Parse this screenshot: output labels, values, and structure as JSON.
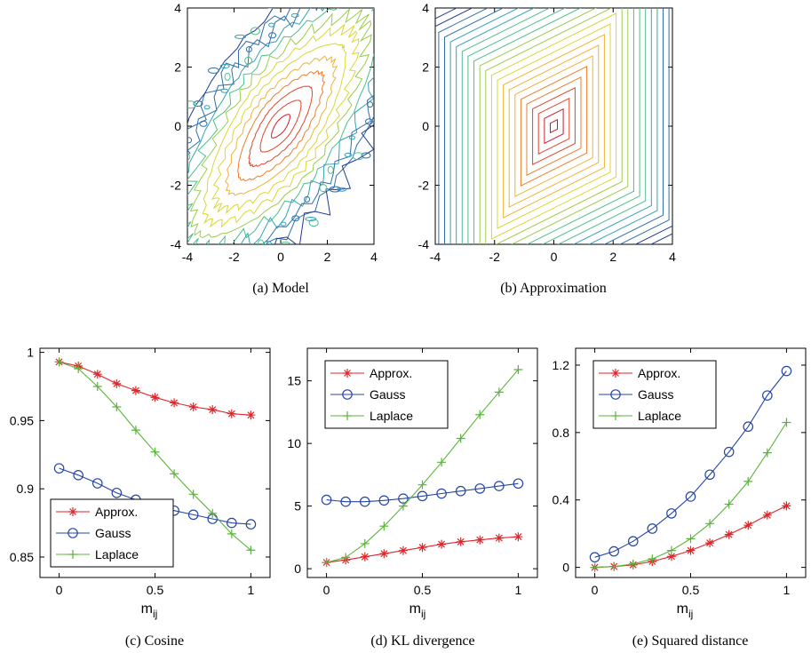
{
  "chart_data": [
    {
      "type": "contour",
      "caption": "(a) Model",
      "xlim": [
        -4,
        4
      ],
      "ylim": [
        -4,
        4
      ],
      "xticks": [
        -4,
        -2,
        0,
        2,
        4
      ],
      "yticks": [
        -4,
        -2,
        0,
        2,
        4
      ],
      "colors": [
        "#1f3a93",
        "#2f6fa8",
        "#33a3b5",
        "#4cbf8a",
        "#9acd4a",
        "#d8d832",
        "#f2b233",
        "#ef7d2c",
        "#e0452a",
        "#c81e2a"
      ]
    },
    {
      "type": "contour",
      "caption": "(b) Approximation",
      "xlim": [
        -4,
        4
      ],
      "ylim": [
        -4,
        4
      ],
      "xticks": [
        -4,
        -2,
        0,
        2,
        4
      ],
      "yticks": [
        -4,
        -2,
        0,
        2,
        4
      ],
      "colors": [
        "#1f3a93",
        "#2f6fa8",
        "#33a3b5",
        "#4cbf8a",
        "#9acd4a",
        "#d8d832",
        "#f2b233",
        "#ef7d2c",
        "#e0452a",
        "#c81e2a"
      ]
    },
    {
      "type": "line",
      "caption": "(c) Cosine",
      "xlabel": "m",
      "xlabel_sub": "ij",
      "xlim": [
        -0.1,
        1.1
      ],
      "ylim": [
        0.835,
        1.003
      ],
      "xticks": [
        0,
        0.5,
        1
      ],
      "xticklabels": [
        "0",
        "0.5",
        "1"
      ],
      "yticks": [
        0.85,
        0.9,
        0.95,
        1
      ],
      "yticklabels": [
        "0.85",
        "0.9",
        "0.95",
        "1"
      ],
      "legend": "bottom-left",
      "x": [
        0,
        0.1,
        0.2,
        0.3,
        0.4,
        0.5,
        0.6,
        0.7,
        0.8,
        0.9,
        1.0
      ],
      "series": [
        {
          "name": "Approx.",
          "color": "#e0262a",
          "marker": "star",
          "values": [
            0.993,
            0.99,
            0.984,
            0.977,
            0.972,
            0.967,
            0.963,
            0.96,
            0.958,
            0.955,
            0.954
          ]
        },
        {
          "name": "Gauss",
          "color": "#2646a6",
          "marker": "circle",
          "values": [
            0.915,
            0.91,
            0.904,
            0.897,
            0.892,
            0.888,
            0.884,
            0.881,
            0.878,
            0.875,
            0.874
          ]
        },
        {
          "name": "Laplace",
          "color": "#5ab43a",
          "marker": "plus",
          "values": [
            0.993,
            0.988,
            0.975,
            0.96,
            0.943,
            0.927,
            0.911,
            0.896,
            0.882,
            0.867,
            0.855
          ]
        }
      ]
    },
    {
      "type": "line",
      "caption": "(d) KL divergence",
      "xlabel": "m",
      "xlabel_sub": "ij",
      "xlim": [
        -0.1,
        1.1
      ],
      "ylim": [
        -0.7,
        17.6
      ],
      "xticks": [
        0,
        0.5,
        1
      ],
      "xticklabels": [
        "0",
        "0.5",
        "1"
      ],
      "yticks": [
        0,
        5,
        10,
        15
      ],
      "yticklabels": [
        "0",
        "5",
        "10",
        "15"
      ],
      "legend": "top-left",
      "x": [
        0,
        0.1,
        0.2,
        0.3,
        0.4,
        0.5,
        0.6,
        0.7,
        0.8,
        0.9,
        1.0
      ],
      "series": [
        {
          "name": "Approx.",
          "color": "#e0262a",
          "marker": "star",
          "values": [
            0.5,
            0.7,
            0.95,
            1.2,
            1.45,
            1.7,
            1.95,
            2.15,
            2.3,
            2.45,
            2.55
          ]
        },
        {
          "name": "Gauss",
          "color": "#2646a6",
          "marker": "circle",
          "values": [
            5.5,
            5.35,
            5.35,
            5.45,
            5.6,
            5.8,
            6.0,
            6.2,
            6.4,
            6.6,
            6.8
          ]
        },
        {
          "name": "Laplace",
          "color": "#5ab43a",
          "marker": "plus",
          "values": [
            0.5,
            0.9,
            2.0,
            3.4,
            5.0,
            6.7,
            8.5,
            10.4,
            12.3,
            14.1,
            15.9
          ]
        }
      ]
    },
    {
      "type": "line",
      "caption": "(e) Squared distance",
      "xlabel": "m",
      "xlabel_sub": "ij",
      "xlim": [
        -0.1,
        1.1
      ],
      "ylim": [
        -0.06,
        1.3
      ],
      "xticks": [
        0,
        0.5,
        1
      ],
      "xticklabels": [
        "0",
        "0.5",
        "1"
      ],
      "yticks": [
        0,
        0.4,
        0.8,
        1.2
      ],
      "yticklabels": [
        "0",
        "0.4",
        "0.8",
        "1.2"
      ],
      "legend": "top-left",
      "x": [
        0,
        0.1,
        0.2,
        0.3,
        0.4,
        0.5,
        0.6,
        0.7,
        0.8,
        0.9,
        1.0
      ],
      "series": [
        {
          "name": "Approx.",
          "color": "#e0262a",
          "marker": "star",
          "values": [
            0.0,
            0.005,
            0.015,
            0.035,
            0.065,
            0.1,
            0.145,
            0.195,
            0.25,
            0.31,
            0.365
          ]
        },
        {
          "name": "Gauss",
          "color": "#2646a6",
          "marker": "circle",
          "values": [
            0.06,
            0.095,
            0.155,
            0.23,
            0.32,
            0.42,
            0.55,
            0.685,
            0.835,
            1.02,
            1.165
          ]
        },
        {
          "name": "Laplace",
          "color": "#5ab43a",
          "marker": "plus",
          "values": [
            0.0,
            0.005,
            0.02,
            0.05,
            0.1,
            0.17,
            0.26,
            0.375,
            0.51,
            0.68,
            0.86
          ]
        }
      ]
    }
  ]
}
